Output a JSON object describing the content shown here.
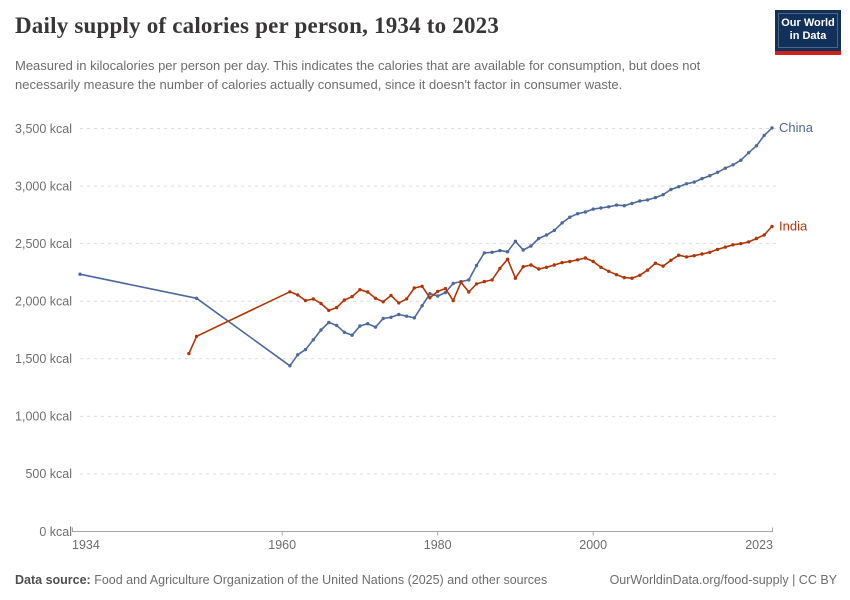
{
  "header": {
    "title": "Daily supply of calories per person, 1934 to 2023",
    "subtitle": "Measured in kilocalories per person per day. This indicates the calories that are available for consumption, but does not necessarily measure the number of calories actually consumed, since it doesn't factor in consumer waste.",
    "logo": {
      "line1": "Our World",
      "line2": "in Data"
    }
  },
  "footer": {
    "datasource_bold": "Data source:",
    "datasource_rest": " Food and Agriculture Organization of the United Nations (2025) and other sources",
    "credit": "OurWorldinData.org/food-supply | CC BY"
  },
  "chart_data": {
    "type": "line",
    "title": "Daily supply of calories per person, 1934 to 2023",
    "unit": "kcal",
    "xlim": [
      1934,
      2023
    ],
    "ylim": [
      0,
      3500
    ],
    "grid": true,
    "legend_position": "end-of-line",
    "x_tick_values": [
      1934,
      1960,
      1980,
      2000,
      2023
    ],
    "x_tick_labels": [
      "1934",
      "1960",
      "1980",
      "2000",
      "2023"
    ],
    "y_tick_values": [
      0,
      500,
      1000,
      1500,
      2000,
      2500,
      3000,
      3500
    ],
    "y_tick_labels": [
      "0 kcal",
      "500 kcal",
      "1,000 kcal",
      "1,500 kcal",
      "2,000 kcal",
      "2,500 kcal",
      "3,000 kcal",
      "3,500 kcal"
    ],
    "series": [
      {
        "name": "China",
        "color": "#4C6A9C",
        "points": [
          [
            1934,
            2235
          ],
          [
            1949,
            2025
          ],
          [
            1961,
            1439
          ],
          [
            1962,
            1535
          ],
          [
            1963,
            1580
          ],
          [
            1964,
            1665
          ],
          [
            1965,
            1750
          ],
          [
            1966,
            1815
          ],
          [
            1967,
            1790
          ],
          [
            1968,
            1730
          ],
          [
            1969,
            1705
          ],
          [
            1970,
            1785
          ],
          [
            1971,
            1805
          ],
          [
            1972,
            1775
          ],
          [
            1973,
            1850
          ],
          [
            1974,
            1860
          ],
          [
            1975,
            1885
          ],
          [
            1976,
            1870
          ],
          [
            1977,
            1855
          ],
          [
            1978,
            1960
          ],
          [
            1979,
            2065
          ],
          [
            1980,
            2045
          ],
          [
            1981,
            2075
          ],
          [
            1982,
            2155
          ],
          [
            1983,
            2170
          ],
          [
            1984,
            2185
          ],
          [
            1985,
            2310
          ],
          [
            1986,
            2420
          ],
          [
            1987,
            2425
          ],
          [
            1988,
            2440
          ],
          [
            1989,
            2430
          ],
          [
            1990,
            2520
          ],
          [
            1991,
            2445
          ],
          [
            1992,
            2480
          ],
          [
            1993,
            2545
          ],
          [
            1994,
            2575
          ],
          [
            1995,
            2615
          ],
          [
            1996,
            2680
          ],
          [
            1997,
            2730
          ],
          [
            1998,
            2760
          ],
          [
            1999,
            2775
          ],
          [
            2000,
            2800
          ],
          [
            2001,
            2810
          ],
          [
            2002,
            2820
          ],
          [
            2003,
            2835
          ],
          [
            2004,
            2830
          ],
          [
            2005,
            2850
          ],
          [
            2006,
            2870
          ],
          [
            2007,
            2880
          ],
          [
            2008,
            2900
          ],
          [
            2009,
            2925
          ],
          [
            2010,
            2970
          ],
          [
            2011,
            2995
          ],
          [
            2012,
            3020
          ],
          [
            2013,
            3035
          ],
          [
            2014,
            3065
          ],
          [
            2015,
            3090
          ],
          [
            2016,
            3120
          ],
          [
            2017,
            3155
          ],
          [
            2018,
            3185
          ],
          [
            2019,
            3225
          ],
          [
            2020,
            3290
          ],
          [
            2021,
            3350
          ],
          [
            2022,
            3440
          ],
          [
            2023,
            3505
          ]
        ]
      },
      {
        "name": "India",
        "color": "#B13507",
        "points": [
          [
            1948,
            1545
          ],
          [
            1949,
            1695
          ],
          [
            1961,
            2082
          ],
          [
            1962,
            2055
          ],
          [
            1963,
            2005
          ],
          [
            1964,
            2020
          ],
          [
            1965,
            1980
          ],
          [
            1966,
            1920
          ],
          [
            1967,
            1945
          ],
          [
            1968,
            2010
          ],
          [
            1969,
            2040
          ],
          [
            1970,
            2100
          ],
          [
            1971,
            2080
          ],
          [
            1972,
            2025
          ],
          [
            1973,
            1995
          ],
          [
            1974,
            2050
          ],
          [
            1975,
            1985
          ],
          [
            1976,
            2020
          ],
          [
            1977,
            2115
          ],
          [
            1978,
            2130
          ],
          [
            1979,
            2030
          ],
          [
            1980,
            2085
          ],
          [
            1981,
            2110
          ],
          [
            1982,
            2005
          ],
          [
            1983,
            2165
          ],
          [
            1984,
            2080
          ],
          [
            1985,
            2150
          ],
          [
            1986,
            2170
          ],
          [
            1987,
            2185
          ],
          [
            1988,
            2285
          ],
          [
            1989,
            2365
          ],
          [
            1990,
            2200
          ],
          [
            1991,
            2300
          ],
          [
            1992,
            2315
          ],
          [
            1993,
            2280
          ],
          [
            1994,
            2295
          ],
          [
            1995,
            2315
          ],
          [
            1996,
            2335
          ],
          [
            1997,
            2345
          ],
          [
            1998,
            2360
          ],
          [
            1999,
            2375
          ],
          [
            2000,
            2345
          ],
          [
            2001,
            2295
          ],
          [
            2002,
            2260
          ],
          [
            2003,
            2230
          ],
          [
            2004,
            2205
          ],
          [
            2005,
            2200
          ],
          [
            2006,
            2225
          ],
          [
            2007,
            2270
          ],
          [
            2008,
            2330
          ],
          [
            2009,
            2305
          ],
          [
            2010,
            2355
          ],
          [
            2011,
            2400
          ],
          [
            2012,
            2385
          ],
          [
            2013,
            2395
          ],
          [
            2014,
            2410
          ],
          [
            2015,
            2425
          ],
          [
            2016,
            2450
          ],
          [
            2017,
            2470
          ],
          [
            2018,
            2490
          ],
          [
            2019,
            2500
          ],
          [
            2020,
            2515
          ],
          [
            2021,
            2545
          ],
          [
            2022,
            2575
          ],
          [
            2023,
            2650
          ]
        ]
      }
    ]
  }
}
